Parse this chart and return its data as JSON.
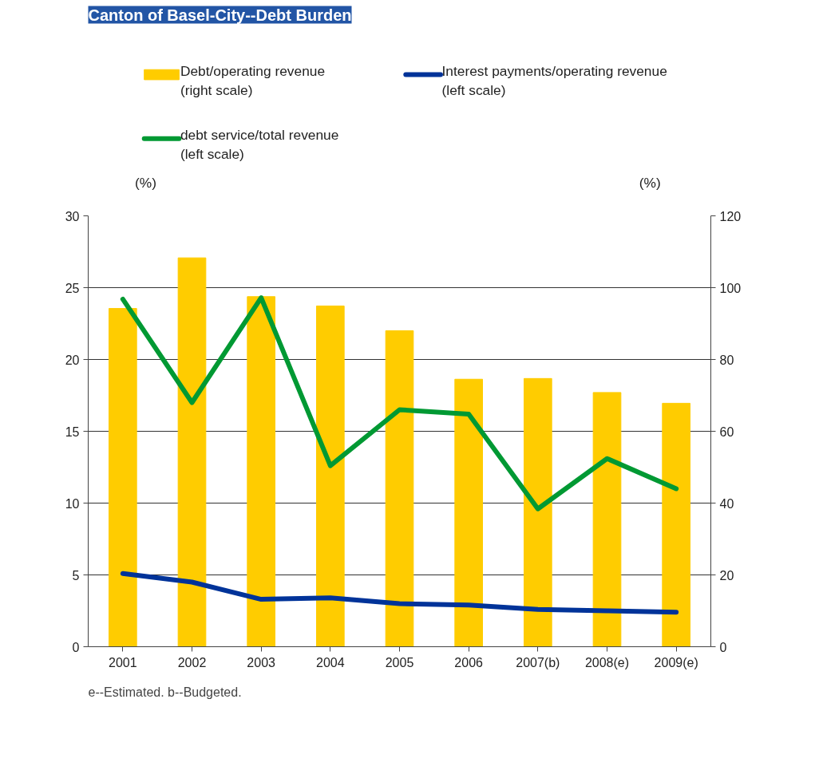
{
  "chart_data": {
    "type": "bar",
    "title": "Canton of Basel-City--Debt Burden",
    "categories": [
      "2001",
      "2002",
      "2003",
      "2004",
      "2005",
      "2006",
      "2007(b)",
      "2008(e)",
      "2009(e)"
    ],
    "series": [
      {
        "name": "Debt/operating revenue\n(right scale)",
        "axis": "y2",
        "color": "#ffcc00",
        "values": [
          94.2,
          108.3,
          97.5,
          94.9,
          88.0,
          74.5,
          74.7,
          70.8,
          67.8
        ]
      },
      {
        "name": "Interest payments/operating revenue\n(left scale)",
        "type": "line",
        "color": "#003399",
        "values": [
          5.1,
          4.5,
          3.3,
          3.4,
          3.0,
          2.9,
          2.6,
          2.5,
          2.4
        ]
      },
      {
        "name": "debt service/total revenue\n(left scale)",
        "type": "line",
        "color": "#009933",
        "values": [
          24.2,
          17.0,
          24.3,
          12.6,
          16.5,
          16.2,
          9.6,
          13.1,
          11.0
        ]
      }
    ],
    "ylabel": "(%)",
    "y2label": "(%)",
    "ylim": [
      0,
      30
    ],
    "yticks": [
      0,
      5,
      10,
      15,
      20,
      25,
      30
    ],
    "y2lim": [
      0,
      120
    ],
    "y2ticks": [
      0,
      20,
      40,
      60,
      80,
      100,
      120
    ],
    "grid": "y",
    "legend": "top",
    "line_style": "solid",
    "annotations": [
      "e--Estimated. b--Budgeted."
    ]
  }
}
